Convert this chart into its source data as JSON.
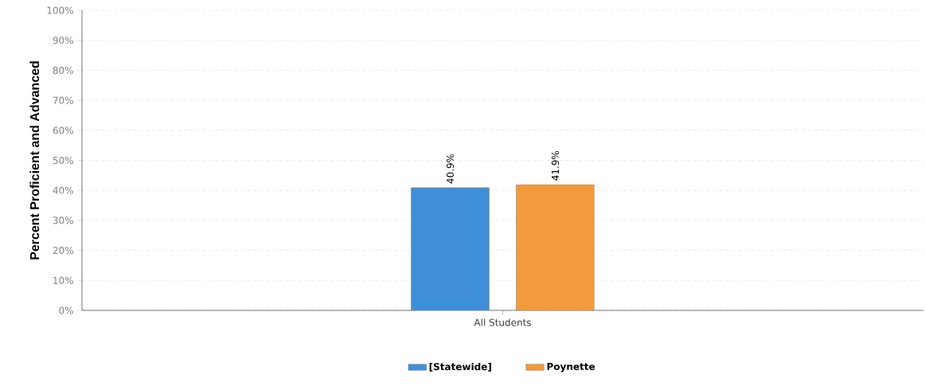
{
  "chart_data": {
    "type": "bar",
    "ylabel": "Percent Proficient and Advanced",
    "categories": [
      "All Students"
    ],
    "series": [
      {
        "name": "[Statewide]",
        "color": "#3f8fd8",
        "values": [
          40.9
        ],
        "value_labels": [
          "40.9%"
        ]
      },
      {
        "name": "Poynette",
        "color": "#f39a3e",
        "values": [
          41.9
        ],
        "value_labels": [
          "41.9%"
        ]
      }
    ],
    "ylim": [
      0,
      100
    ],
    "yticks": [
      {
        "value": 0,
        "label": "0%"
      },
      {
        "value": 10,
        "label": "10%"
      },
      {
        "value": 20,
        "label": "20%"
      },
      {
        "value": 30,
        "label": "30%"
      },
      {
        "value": 40,
        "label": "40%"
      },
      {
        "value": 50,
        "label": "50%"
      },
      {
        "value": 60,
        "label": "60%"
      },
      {
        "value": 70,
        "label": "70%"
      },
      {
        "value": 80,
        "label": "80%"
      },
      {
        "value": 90,
        "label": "90%"
      },
      {
        "value": 100,
        "label": "100%"
      }
    ],
    "grid": "y",
    "legend": "bottom"
  }
}
